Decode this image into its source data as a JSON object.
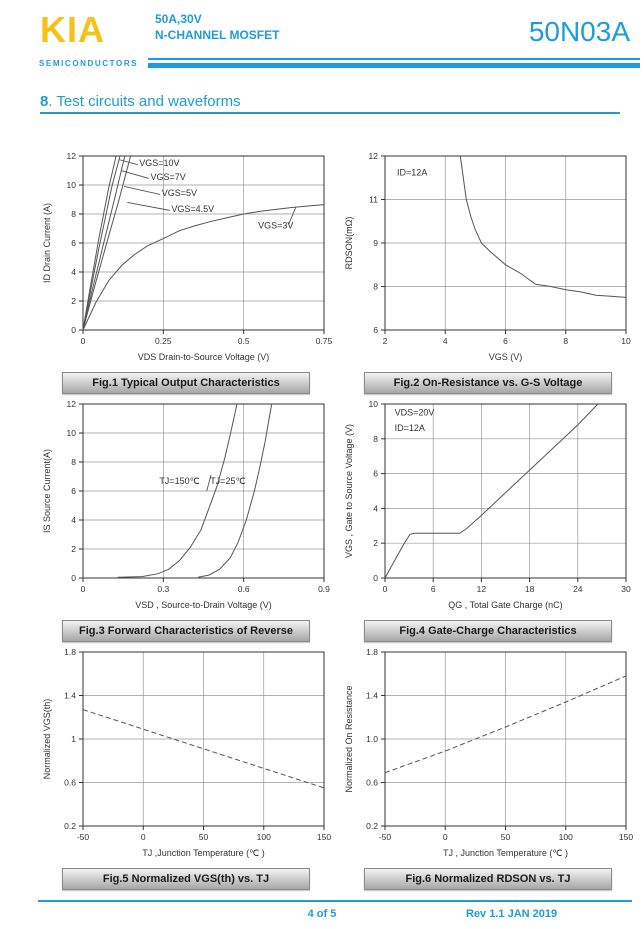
{
  "header": {
    "logo": "KIA",
    "logo_sub": "SEMICONDUCTORS",
    "rating": "50A,30V",
    "device_type": "N-CHANNEL MOSFET",
    "part_number": "50N03A"
  },
  "section": {
    "prefix": "8",
    "rest": ". Test circuits and waveforms"
  },
  "footer": {
    "page": "4 of 5",
    "revision": "Rev 1.1 JAN 2019"
  },
  "colors": {
    "accent": "#1E9CD7",
    "logo_yellow": "#F5C21B",
    "plot_line": "#555555",
    "grid": "#999999"
  },
  "chart_data": [
    {
      "type": "line",
      "caption": "Fig.1 Typical Output Characteristics",
      "xlabel": "VDS  Drain-to-Source Voltage (V)",
      "ylabel": "ID Drain Current (A)",
      "xlim": [
        0,
        0.75
      ],
      "ylim": [
        0,
        12
      ],
      "xticks": [
        0,
        0.25,
        0.5,
        0.75
      ],
      "xtick_labels": [
        "0",
        "0.25",
        "0.5",
        "0.75"
      ],
      "yticks": [
        0,
        2,
        4,
        6,
        8,
        10,
        12
      ],
      "ytick_labels": [
        "0",
        "2",
        "4",
        "6",
        "8",
        "10",
        "12"
      ],
      "series": [
        {
          "name": "VGS=10V",
          "points": [
            [
              0,
              0
            ],
            [
              0.02,
              2.6
            ],
            [
              0.05,
              6.4
            ],
            [
              0.08,
              9.8
            ],
            [
              0.103,
              12
            ]
          ]
        },
        {
          "name": "VGS=7V",
          "points": [
            [
              0,
              0
            ],
            [
              0.02,
              2.3
            ],
            [
              0.05,
              5.7
            ],
            [
              0.09,
              9.9
            ],
            [
              0.115,
              12
            ]
          ]
        },
        {
          "name": "VGS=5V",
          "points": [
            [
              0,
              0
            ],
            [
              0.025,
              2.4
            ],
            [
              0.06,
              5.6
            ],
            [
              0.1,
              9.2
            ],
            [
              0.13,
              12
            ]
          ]
        },
        {
          "name": "VGS=4.5V",
          "points": [
            [
              0,
              0
            ],
            [
              0.03,
              2.5
            ],
            [
              0.07,
              5.7
            ],
            [
              0.11,
              8.8
            ],
            [
              0.148,
              12
            ]
          ]
        },
        {
          "name": "VGS=3V",
          "points": [
            [
              0,
              0
            ],
            [
              0.04,
              1.9
            ],
            [
              0.08,
              3.4
            ],
            [
              0.12,
              4.45
            ],
            [
              0.16,
              5.2
            ],
            [
              0.2,
              5.8
            ],
            [
              0.25,
              6.3
            ],
            [
              0.3,
              6.85
            ],
            [
              0.35,
              7.2
            ],
            [
              0.4,
              7.5
            ],
            [
              0.45,
              7.75
            ],
            [
              0.5,
              8.0
            ],
            [
              0.55,
              8.18
            ],
            [
              0.6,
              8.32
            ],
            [
              0.65,
              8.45
            ],
            [
              0.7,
              8.55
            ],
            [
              0.75,
              8.65
            ]
          ]
        }
      ],
      "annotations": [
        {
          "text": "VGS=10V",
          "x": 0.175,
          "y": 11.3
        },
        {
          "text": "VGS=7V",
          "x": 0.21,
          "y": 10.35
        },
        {
          "text": "VGS=5V",
          "x": 0.245,
          "y": 9.25
        },
        {
          "text": "VGS=4.5V",
          "x": 0.275,
          "y": 8.15
        },
        {
          "text": "VGS=3V",
          "x": 0.545,
          "y": 7.0
        }
      ],
      "leaders": [
        [
          0.17,
          11.4,
          0.112,
          11.75
        ],
        [
          0.205,
          10.45,
          0.118,
          11.0
        ],
        [
          0.24,
          9.35,
          0.128,
          9.9
        ],
        [
          0.27,
          8.25,
          0.138,
          8.8
        ],
        [
          0.64,
          7.3,
          0.662,
          8.45
        ]
      ]
    },
    {
      "type": "line",
      "caption": "Fig.2 On-Resistance vs. G-S Voltage",
      "xlabel": "VGS (V)",
      "ylabel": "RDSON(mΩ)",
      "xlim": [
        2,
        10
      ],
      "ylim": [
        6,
        12
      ],
      "xticks": [
        2,
        4,
        6,
        8,
        10
      ],
      "xtick_labels": [
        "2",
        "4",
        "6",
        "8",
        "10"
      ],
      "yticks": [
        6,
        8,
        9,
        11,
        12
      ],
      "ytick_labels": [
        "6",
        "8",
        "9",
        "11",
        "12"
      ],
      "series": [
        {
          "name": "RDSON",
          "points": [
            [
              4.5,
              12
            ],
            [
              4.7,
              11
            ],
            [
              4.85,
              10.2
            ],
            [
              5.0,
              9.6
            ],
            [
              5.2,
              9.0
            ],
            [
              5.5,
              8.8
            ],
            [
              6.0,
              8.5
            ],
            [
              6.5,
              8.3
            ],
            [
              7.0,
              8.05
            ],
            [
              7.5,
              8.0
            ],
            [
              8.0,
              7.85
            ],
            [
              8.5,
              7.75
            ],
            [
              9.0,
              7.6
            ],
            [
              9.5,
              7.55
            ],
            [
              10,
              7.5
            ]
          ]
        }
      ],
      "annotations": [
        {
          "text": "ID=12A",
          "x": 2.4,
          "y": 11.55
        }
      ],
      "leaders": []
    },
    {
      "type": "line",
      "caption": "Fig.3 Forward Characteristics of Reverse",
      "xlabel": "VSD , Source-to-Drain Voltage (V)",
      "ylabel": "IS Source Current(A)",
      "xlim": [
        0,
        0.9
      ],
      "ylim": [
        0,
        12
      ],
      "xticks": [
        0,
        0.3,
        0.6,
        0.9
      ],
      "xtick_labels": [
        "0",
        "0.3",
        "0.6",
        "0.9"
      ],
      "yticks": [
        0,
        2,
        4,
        6,
        8,
        10,
        12
      ],
      "ytick_labels": [
        "0",
        "2",
        "4",
        "6",
        "8",
        "10",
        "12"
      ],
      "series": [
        {
          "name": "TJ=150C",
          "points": [
            [
              0.13,
              0.05
            ],
            [
              0.22,
              0.1
            ],
            [
              0.28,
              0.3
            ],
            [
              0.32,
              0.6
            ],
            [
              0.36,
              1.2
            ],
            [
              0.4,
              2.1
            ],
            [
              0.44,
              3.3
            ],
            [
              0.47,
              4.8
            ],
            [
              0.5,
              6.3
            ],
            [
              0.53,
              8.3
            ],
            [
              0.55,
              9.9
            ],
            [
              0.575,
              12
            ]
          ]
        },
        {
          "name": "TJ=25C",
          "points": [
            [
              0.43,
              0.05
            ],
            [
              0.47,
              0.2
            ],
            [
              0.51,
              0.6
            ],
            [
              0.55,
              1.4
            ],
            [
              0.58,
              2.5
            ],
            [
              0.61,
              4.0
            ],
            [
              0.64,
              6.0
            ],
            [
              0.66,
              7.6
            ],
            [
              0.68,
              9.4
            ],
            [
              0.695,
              11.0
            ],
            [
              0.705,
              12
            ]
          ]
        }
      ],
      "annotations": [
        {
          "text": "TJ=150℃",
          "x": 0.285,
          "y": 6.5
        },
        {
          "text": "TJ=25℃",
          "x": 0.475,
          "y": 6.5
        }
      ],
      "leaders": [
        [
          0.462,
          6.0,
          0.478,
          7.1
        ]
      ]
    },
    {
      "type": "line",
      "caption": "Fig.4 Gate-Charge Characteristics",
      "xlabel": "QG , Total Gate Charge (nC)",
      "ylabel": "VGS , Gate to Source Voltage (V)",
      "xlim": [
        0,
        30
      ],
      "ylim": [
        0,
        10
      ],
      "xticks": [
        0,
        6,
        12,
        18,
        24,
        30
      ],
      "xtick_labels": [
        "0",
        "6",
        "12",
        "18",
        "24",
        "30"
      ],
      "yticks": [
        0,
        2,
        4,
        6,
        8,
        10
      ],
      "ytick_labels": [
        "0",
        "2",
        "4",
        "6",
        "8",
        "10"
      ],
      "series": [
        {
          "name": "gate-charge",
          "points": [
            [
              0,
              0
            ],
            [
              1.2,
              1.0
            ],
            [
              2.4,
              2.0
            ],
            [
              3.1,
              2.5
            ],
            [
              3.6,
              2.57
            ],
            [
              9.3,
              2.57
            ],
            [
              10.2,
              2.85
            ],
            [
              12,
              3.6
            ],
            [
              15,
              4.9
            ],
            [
              18,
              6.2
            ],
            [
              21,
              7.5
            ],
            [
              24,
              8.8
            ],
            [
              26.5,
              10
            ]
          ]
        }
      ],
      "annotations": [
        {
          "text": "VDS=20V",
          "x": 1.2,
          "y": 9.35
        },
        {
          "text": "ID=12A",
          "x": 1.2,
          "y": 8.45
        }
      ],
      "leaders": []
    },
    {
      "type": "line",
      "caption": "Fig.5 Normalized VGS(th) vs. TJ",
      "xlabel": "TJ ,Junction Temperature (℃ )",
      "ylabel": "Normalized VGS(th)",
      "xlim": [
        -50,
        150
      ],
      "ylim": [
        0.2,
        1.8
      ],
      "xticks": [
        -50,
        0,
        50,
        100,
        150
      ],
      "xtick_labels": [
        "-50",
        "0",
        "50",
        "100",
        "150"
      ],
      "yticks": [
        0.2,
        0.6,
        1.0,
        1.4,
        1.8
      ],
      "ytick_labels": [
        "0.2",
        "0.6",
        "1",
        "1.4",
        "1.8"
      ],
      "series": [
        {
          "name": "normalized-vgsth",
          "dash": "5,3",
          "points": [
            [
              -50,
              1.27
            ],
            [
              0,
              1.09
            ],
            [
              50,
              0.91
            ],
            [
              100,
              0.73
            ],
            [
              150,
              0.55
            ]
          ]
        }
      ],
      "annotations": [],
      "leaders": []
    },
    {
      "type": "line",
      "caption": "Fig.6 Normalized RDSON vs. TJ",
      "xlabel": "TJ , Junction Temperature (℃ )",
      "ylabel": "Normalized On Resistance",
      "xlim": [
        -50,
        150
      ],
      "ylim": [
        0.2,
        1.8
      ],
      "xticks": [
        -50,
        0,
        50,
        100,
        150
      ],
      "xtick_labels": [
        "-50",
        "0",
        "50",
        "100",
        "150"
      ],
      "yticks": [
        0.2,
        0.6,
        1.0,
        1.4,
        1.8
      ],
      "ytick_labels": [
        "0.2",
        "0.6",
        "1.0",
        "1.4",
        "1.8"
      ],
      "series": [
        {
          "name": "normalized-rdson",
          "dash": "5,3",
          "points": [
            [
              -50,
              0.69
            ],
            [
              0,
              0.89
            ],
            [
              50,
              1.11
            ],
            [
              100,
              1.34
            ],
            [
              150,
              1.58
            ]
          ]
        }
      ],
      "annotations": [],
      "leaders": []
    }
  ]
}
